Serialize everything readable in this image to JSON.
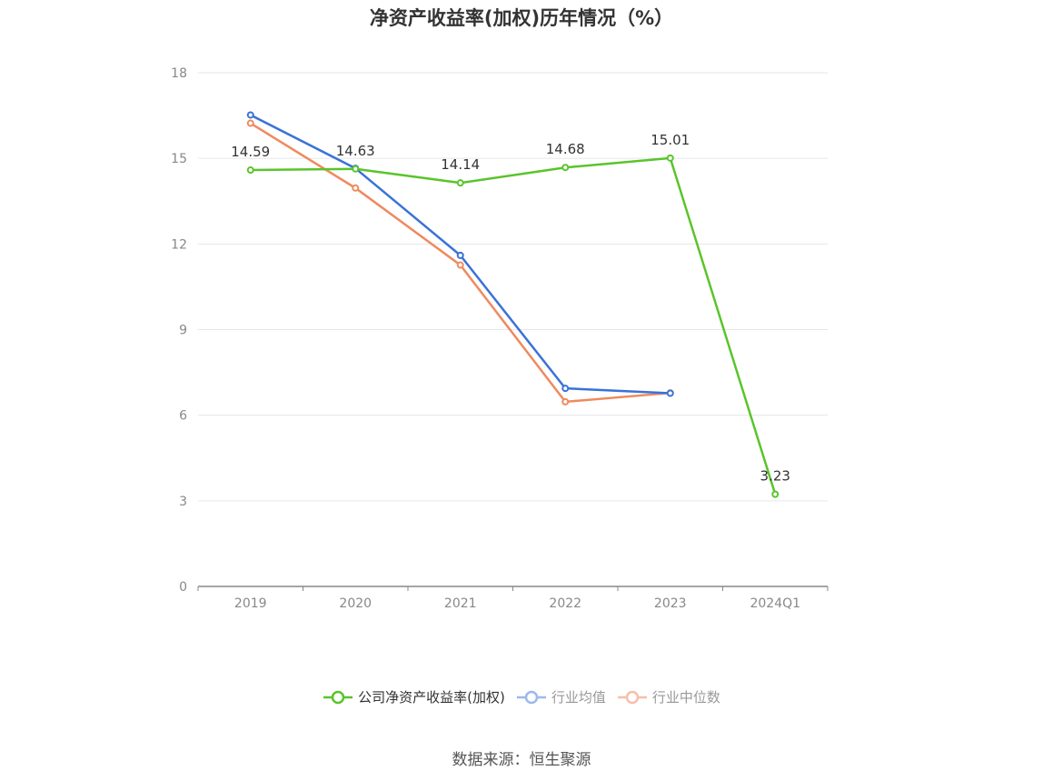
{
  "chart_data": {
    "type": "line",
    "title": "净资产收益率(加权)历年情况（%）",
    "categories": [
      "2019",
      "2020",
      "2021",
      "2022",
      "2023",
      "2024Q1"
    ],
    "ylim": [
      0,
      18
    ],
    "yticks": [
      0,
      3,
      6,
      9,
      12,
      15,
      18
    ],
    "grid": true,
    "legend_position": "bottom",
    "series": [
      {
        "name": "公司净资产收益率(加权)",
        "color": "#5ac42a",
        "values": [
          14.59,
          14.63,
          14.14,
          14.68,
          15.01,
          3.23
        ],
        "labels": [
          "14.59",
          "14.63",
          "14.14",
          "14.68",
          "15.01",
          "3.23"
        ]
      },
      {
        "name": "行业均值",
        "color": "#3a72d8",
        "legend_color": "#9db9ec",
        "values": [
          16.52,
          14.65,
          11.6,
          6.94,
          6.77,
          null
        ]
      },
      {
        "name": "行业中位数",
        "color": "#ef8a5e",
        "legend_color": "#f6c0a8",
        "values": [
          16.23,
          13.96,
          11.26,
          6.47,
          6.78,
          null
        ]
      }
    ]
  },
  "source": "数据来源：恒生聚源"
}
